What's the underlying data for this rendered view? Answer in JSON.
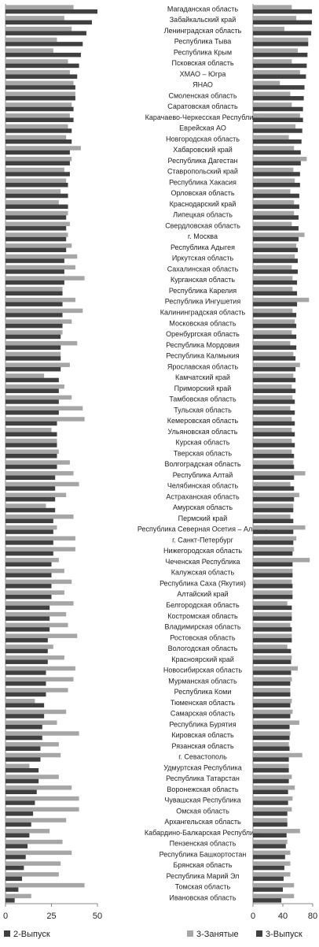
{
  "chart_data": [
    {
      "type": "bar",
      "orientation": "horizontal",
      "series": [
        {
          "color": "#a6a6a6",
          "values": [
            37,
            32,
            36,
            28,
            26,
            34,
            35,
            37,
            38,
            36,
            35,
            34,
            33,
            41,
            36,
            32,
            33,
            30,
            29,
            34,
            35,
            34,
            36,
            39,
            38,
            43,
            31,
            38,
            42,
            36,
            31,
            39,
            30,
            35,
            21,
            32,
            36,
            42,
            43,
            25,
            28,
            29,
            35,
            37,
            40,
            33,
            22,
            37,
            28,
            38,
            38,
            29,
            32,
            36,
            32,
            37,
            33,
            34,
            39,
            26,
            32,
            38,
            37,
            34,
            16,
            33,
            28,
            40,
            29,
            30,
            13,
            29,
            36,
            40,
            40,
            33,
            24,
            31,
            36,
            30,
            29,
            43,
            14
          ]
        },
        {
          "name": "2-Выпуск",
          "color": "#404040",
          "values": [
            50,
            47,
            44,
            42,
            41,
            40,
            39,
            38,
            38,
            37,
            37,
            36,
            36,
            35,
            35,
            35,
            34,
            34,
            34,
            33,
            33,
            33,
            33,
            32,
            32,
            32,
            31,
            31,
            31,
            31,
            30,
            30,
            30,
            30,
            29,
            29,
            29,
            29,
            28,
            28,
            28,
            28,
            28,
            27,
            27,
            27,
            27,
            26,
            26,
            26,
            26,
            25,
            25,
            25,
            25,
            24,
            24,
            24,
            23,
            23,
            23,
            22,
            22,
            22,
            21,
            21,
            20,
            20,
            19,
            19,
            18,
            18,
            17,
            16,
            15,
            14,
            13,
            12,
            11,
            10,
            9,
            7,
            5
          ]
        }
      ],
      "xlim": [
        0,
        50
      ],
      "xticks": [
        0,
        25,
        50
      ]
    },
    {
      "type": "bar",
      "orientation": "horizontal",
      "categories": [
        "Магаданская область",
        "Забайкальский край",
        "Ленинградская область",
        "Республика Тыва",
        "Республика Крым",
        "Псковская область",
        "ХМАО – Югра",
        "ЯНАО",
        "Смоленская область",
        "Саратовская область",
        "Карачаево-Черкесская Республика",
        "Еврейская АО",
        "Новгородская область",
        "Хабаровский край",
        "Республика Дагестан",
        "Ставропольский край",
        "Республика Хакасия",
        "Орловская область",
        "Краснодарский край",
        "Липецкая область",
        "Свердловская область",
        "г. Москва",
        "Республика Адыгея",
        "Иркутская область",
        "Сахалинская область",
        "Курганская область",
        "Республика Карелия",
        "Республика Ингушетия",
        "Калининградская область",
        "Московская область",
        "Оренбургская область",
        "Республика Мордовия",
        "Республика Калмыкия",
        "Ярославская область",
        "Камчатский край",
        "Приморский край",
        "Тамбовская область",
        "Тульская область",
        "Кемеровская область",
        "Ульяновская область",
        "Курская область",
        "Тверская область",
        "Волгоградская область",
        "Республика Алтай",
        "Челябинская область",
        "Астраханская область",
        "Амурская область",
        "Пермский край",
        "Республика Северная Осетия – Алания",
        "г. Санкт-Петербург",
        "Нижегородская область",
        "Чеченская Республика",
        "Калужская область",
        "Республика Саха (Якутия)",
        "Алтайский край",
        "Белгородская область",
        "Костромская область",
        "Владимирская область",
        "Ростовская область",
        "Вологодская область",
        "Красноярский край",
        "Новосибирская область",
        "Мурманская область",
        "Республика Коми",
        "Тюменская область",
        "Самарская область",
        "Республика Бурятия",
        "Кировская область",
        "Рязанская область",
        "г. Севастополь",
        "Удмуртская Республика",
        "Республика Татарстан",
        "Воронежская область",
        "Чувашская Республика",
        "Омская область",
        "Архангельская область",
        "Кабардино-Балкарская Республика",
        "Пензенская область",
        "Республика Башкортостан",
        "Брянская область",
        "Республика Марий Эл",
        "Томская область",
        "Ивановская область"
      ],
      "series": [
        {
          "name": "3-Занятые",
          "color": "#a6a6a6",
          "values": [
            52,
            58,
            42,
            74,
            60,
            52,
            63,
            36,
            50,
            52,
            63,
            57,
            48,
            55,
            72,
            54,
            56,
            50,
            55,
            55,
            52,
            69,
            58,
            56,
            52,
            53,
            53,
            75,
            53,
            56,
            52,
            50,
            54,
            63,
            54,
            52,
            53,
            50,
            52,
            52,
            52,
            52,
            54,
            70,
            50,
            62,
            54,
            50,
            70,
            58,
            55,
            76,
            53,
            52,
            53,
            46,
            52,
            50,
            52,
            46,
            52,
            60,
            52,
            50,
            52,
            53,
            62,
            50,
            48,
            66,
            48,
            52,
            56,
            53,
            52,
            46,
            63,
            46,
            50,
            50,
            50,
            55,
            55
          ]
        },
        {
          "name": "3-Выпуск",
          "color": "#404040",
          "values": [
            79,
            79,
            78,
            74,
            73,
            72,
            71,
            69,
            68,
            67,
            67,
            66,
            65,
            64,
            64,
            63,
            63,
            62,
            62,
            61,
            61,
            61,
            60,
            60,
            60,
            59,
            59,
            59,
            58,
            58,
            58,
            58,
            57,
            57,
            57,
            57,
            56,
            56,
            56,
            56,
            56,
            55,
            55,
            55,
            55,
            55,
            54,
            54,
            54,
            54,
            53,
            53,
            53,
            53,
            53,
            52,
            52,
            52,
            52,
            51,
            51,
            51,
            50,
            50,
            50,
            50,
            49,
            49,
            49,
            48,
            48,
            48,
            47,
            47,
            46,
            46,
            45,
            44,
            43,
            42,
            41,
            40,
            38
          ]
        }
      ],
      "xlim": [
        0,
        80
      ],
      "xticks": [
        0,
        40,
        80
      ]
    }
  ]
}
